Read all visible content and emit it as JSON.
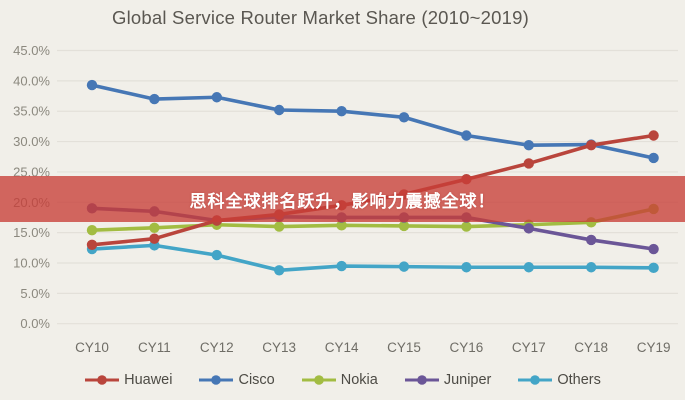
{
  "title": "Global Service Router Market Share (2010~2019)",
  "banner": {
    "text": "思科全球排名跃升，影响力震撼全球！",
    "bg": "rgba(200,62,55,0.78)",
    "text_color": "#ffffff"
  },
  "colors": {
    "background": "#f1efe9",
    "grid": "#e3e0d9",
    "axis_y_labels": "#8b887e",
    "axis_x_labels": "#6f6d66",
    "legend_text": "#4d4b45",
    "title_text": "#5a5751"
  },
  "chart_data": {
    "type": "line",
    "title": "Global Service Router Market Share (2010~2019)",
    "xlabel": "",
    "ylabel": "",
    "grid": true,
    "legend_position": "bottom",
    "ylim": [
      0,
      45
    ],
    "ytick_step": 5,
    "ytick_labels": [
      "0.0%",
      "5.0%",
      "10.0%",
      "15.0%",
      "20.0%",
      "25.0%",
      "30.0%",
      "35.0%",
      "40.0%",
      "45.0%"
    ],
    "categories": [
      "CY10",
      "CY11",
      "CY12",
      "CY13",
      "CY14",
      "CY15",
      "CY16",
      "CY17",
      "CY18",
      "CY19"
    ],
    "series": [
      {
        "name": "Huawei",
        "color": "#b9453c",
        "values": [
          13.0,
          14.0,
          17.0,
          18.0,
          19.5,
          21.3,
          23.8,
          26.4,
          29.4,
          31.0
        ]
      },
      {
        "name": "Cisco",
        "color": "#4677b5",
        "values": [
          39.3,
          37.0,
          37.3,
          35.2,
          35.0,
          34.0,
          31.0,
          29.4,
          29.5,
          27.3
        ]
      },
      {
        "name": "Nokia",
        "color": "#a2bc42",
        "values": [
          15.4,
          15.8,
          16.3,
          16.0,
          16.2,
          16.1,
          16.0,
          16.3,
          16.7,
          18.9
        ]
      },
      {
        "name": "Juniper",
        "color": "#6b5697",
        "values": [
          19.0,
          18.5,
          17.0,
          17.6,
          17.5,
          17.5,
          17.5,
          15.7,
          13.8,
          12.3
        ]
      },
      {
        "name": "Others",
        "color": "#43a5c7",
        "values": [
          12.3,
          12.9,
          11.3,
          8.8,
          9.5,
          9.4,
          9.3,
          9.3,
          9.3,
          9.2
        ]
      }
    ],
    "draw_order_names_back_to_front": [
      "Nokia",
      "Others",
      "Juniper",
      "Cisco",
      "Huawei"
    ]
  }
}
